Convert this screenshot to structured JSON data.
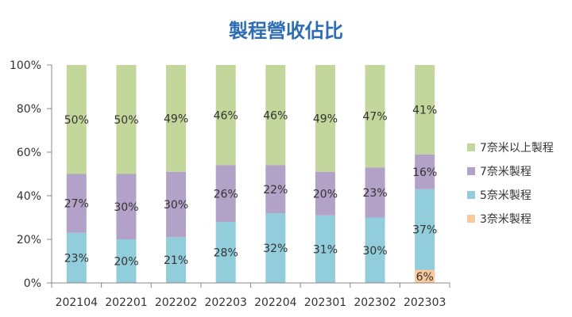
{
  "chart_data": {
    "type": "bar",
    "stacked": true,
    "title": "製程營收佔比",
    "categories": [
      "202104",
      "202201",
      "202202",
      "202203",
      "202204",
      "202301",
      "202302",
      "202303"
    ],
    "ylim": [
      0,
      100
    ],
    "yticks": [
      "0%",
      "20%",
      "40%",
      "60%",
      "80%",
      "100%"
    ],
    "grid": false,
    "legend_position": "right",
    "series": [
      {
        "name": "3奈米製程",
        "color": "#f9c89b",
        "values": [
          0,
          0,
          0,
          0,
          0,
          0,
          0,
          6
        ],
        "labels": [
          "",
          "",
          "",
          "",
          "",
          "",
          "",
          "6%"
        ]
      },
      {
        "name": "5奈米製程",
        "color": "#92cddc",
        "values": [
          23,
          20,
          21,
          28,
          32,
          31,
          30,
          37
        ],
        "labels": [
          "23%",
          "20%",
          "21%",
          "28%",
          "32%",
          "31%",
          "30%",
          "37%"
        ]
      },
      {
        "name": "7奈米製程",
        "color": "#b3a2c7",
        "values": [
          27,
          30,
          30,
          26,
          22,
          20,
          23,
          16
        ],
        "labels": [
          "27%",
          "30%",
          "30%",
          "26%",
          "22%",
          "20%",
          "23%",
          "16%"
        ]
      },
      {
        "name": "7奈米以上製程",
        "color": "#c3d69b",
        "values": [
          50,
          50,
          49,
          46,
          46,
          49,
          47,
          41
        ],
        "labels": [
          "50%",
          "50%",
          "49%",
          "46%",
          "46%",
          "49%",
          "47%",
          "41%"
        ]
      }
    ],
    "legend_order": [
      "7奈米以上製程",
      "7奈米製程",
      "5奈米製程",
      "3奈米製程"
    ]
  }
}
